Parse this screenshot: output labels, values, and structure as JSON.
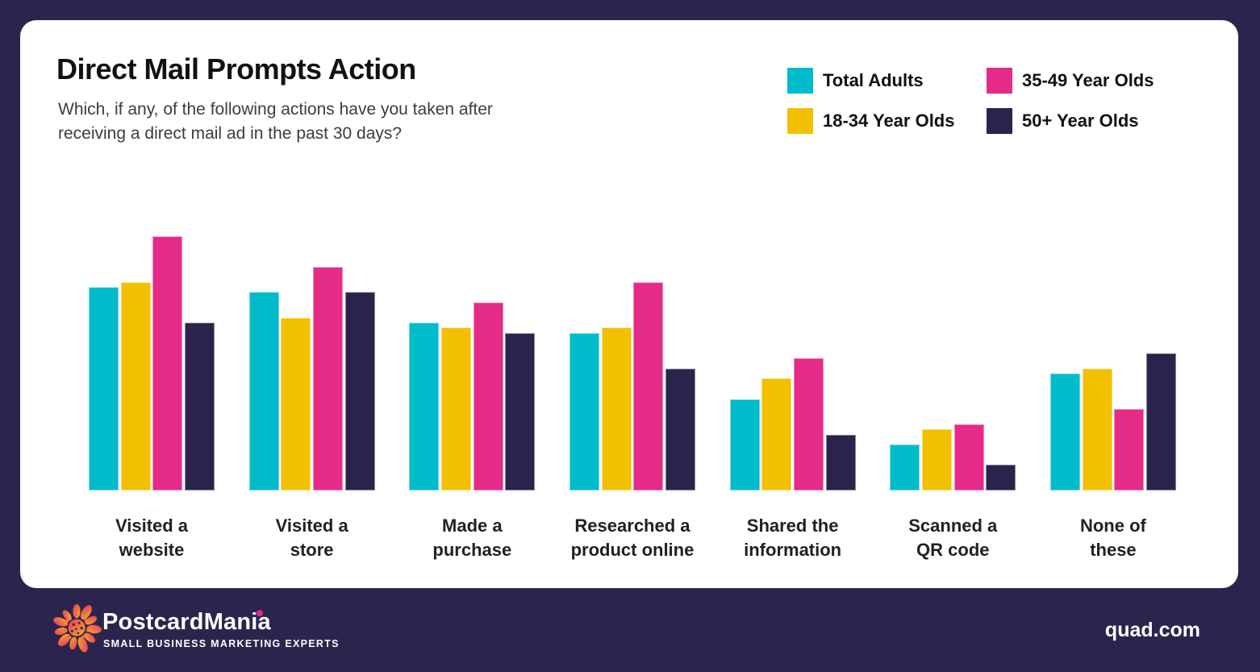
{
  "header": {
    "title": "Direct Mail Prompts Action",
    "subtitle": "Which, if any, of the following actions have you taken after receiving a direct mail ad in the past 30 days?",
    "subtitle_lines": [
      "Which, if any, of the following actions have you taken after",
      "receiving a direct mail ad in the past 30 days?"
    ]
  },
  "chart_data": {
    "type": "bar",
    "title": "Direct Mail Prompts Action",
    "categories": [
      "Visited a website",
      "Visited a store",
      "Made a purchase",
      "Researched a product online",
      "Shared the information",
      "Scanned a QR code",
      "None of these"
    ],
    "category_label_lines": [
      [
        "Visited a",
        "website"
      ],
      [
        "Visited a",
        "store"
      ],
      [
        "Made a",
        "purchase"
      ],
      [
        "Researched a",
        "product online"
      ],
      [
        "Shared the",
        "information"
      ],
      [
        "Scanned a",
        "QR code"
      ],
      [
        "None of",
        "these"
      ]
    ],
    "series": [
      {
        "name": "Total Adults",
        "color": "#00BCCB",
        "values": [
          40,
          39,
          33,
          31,
          18,
          9,
          23
        ]
      },
      {
        "name": "18-34 Year Olds",
        "color": "#F2C000",
        "values": [
          41,
          34,
          32,
          32,
          22,
          12,
          24
        ]
      },
      {
        "name": "35-49 Year Olds",
        "color": "#E52A87",
        "values": [
          50,
          44,
          37,
          41,
          26,
          13,
          16
        ]
      },
      {
        "name": "50+ Year Olds",
        "color": "#2A244C",
        "values": [
          33,
          39,
          31,
          24,
          11,
          5,
          27
        ]
      }
    ],
    "unit": "percent",
    "ylim": [
      0,
      50
    ],
    "grid": false,
    "axis_labels_shown": false,
    "legend_position": "top-right"
  },
  "footer": {
    "brand": "PostcardMania",
    "tagline": "SMALL BUSINESS MARKETING EXPERTS",
    "website": "quad.com"
  },
  "colors": {
    "background": "#2B254E",
    "card": "#FFFFFF",
    "accent_teal": "#00BCCB",
    "accent_yellow": "#F2C000",
    "accent_pink": "#E52A87",
    "accent_navy": "#2A244C"
  }
}
